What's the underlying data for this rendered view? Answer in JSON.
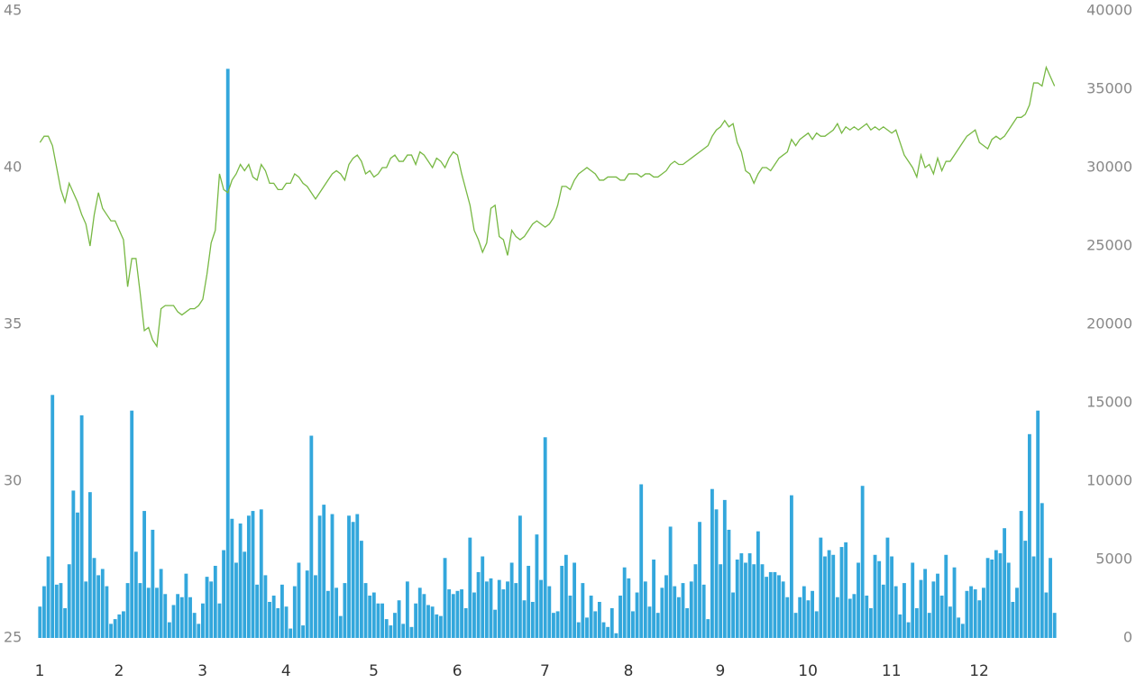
{
  "chart_data": {
    "type": "bar",
    "categories": [
      "1",
      null,
      null,
      null,
      null,
      null,
      null,
      null,
      null,
      null,
      null,
      null,
      null,
      null,
      null,
      null,
      null,
      null,
      null,
      "2",
      null,
      null,
      null,
      null,
      null,
      null,
      null,
      null,
      null,
      null,
      null,
      null,
      null,
      null,
      null,
      null,
      null,
      null,
      null,
      "3",
      null,
      null,
      null,
      null,
      null,
      null,
      null,
      null,
      null,
      null,
      null,
      null,
      null,
      null,
      null,
      null,
      null,
      null,
      null,
      "4",
      null,
      null,
      null,
      null,
      null,
      null,
      null,
      null,
      null,
      null,
      null,
      null,
      null,
      null,
      null,
      null,
      null,
      null,
      null,
      null,
      "5",
      null,
      null,
      null,
      null,
      null,
      null,
      null,
      null,
      null,
      null,
      null,
      null,
      null,
      null,
      null,
      null,
      null,
      null,
      null,
      "6",
      null,
      null,
      null,
      null,
      null,
      null,
      null,
      null,
      null,
      null,
      null,
      null,
      null,
      null,
      null,
      null,
      null,
      null,
      null,
      null,
      "7",
      null,
      null,
      null,
      null,
      null,
      null,
      null,
      null,
      null,
      null,
      null,
      null,
      null,
      null,
      null,
      null,
      null,
      null,
      null,
      "8",
      null,
      null,
      null,
      null,
      null,
      null,
      null,
      null,
      null,
      null,
      null,
      null,
      null,
      null,
      null,
      null,
      null,
      null,
      null,
      null,
      null,
      "9",
      null,
      null,
      null,
      null,
      null,
      null,
      null,
      null,
      null,
      null,
      null,
      null,
      null,
      null,
      null,
      null,
      null,
      null,
      null,
      null,
      "10",
      null,
      null,
      null,
      null,
      null,
      null,
      null,
      null,
      null,
      null,
      null,
      null,
      null,
      null,
      null,
      null,
      null,
      null,
      null,
      "11",
      null,
      null,
      null,
      null,
      null,
      null,
      null,
      null,
      null,
      null,
      null,
      null,
      null,
      null,
      null,
      null,
      null,
      null,
      null,
      null,
      "12",
      null,
      null,
      null,
      null,
      null,
      null,
      null,
      null,
      null,
      null,
      null,
      null,
      null,
      null,
      null,
      null,
      null,
      null
    ],
    "series": [
      {
        "type": "bar",
        "axis": "y2",
        "color": "#33a7dc",
        "values": [
          2000,
          3300,
          5200,
          15500,
          3400,
          3500,
          1900,
          4700,
          9400,
          8000,
          14200,
          3600,
          9300,
          5100,
          4000,
          4400,
          3300,
          900,
          1200,
          1500,
          1700,
          3500,
          14500,
          5500,
          3500,
          8100,
          3200,
          6900,
          3200,
          4400,
          2800,
          1000,
          2100,
          2800,
          2600,
          4100,
          2600,
          1600,
          900,
          2200,
          3900,
          3600,
          4600,
          2200,
          5600,
          36300,
          7600,
          4800,
          7300,
          5500,
          7800,
          8100,
          3400,
          8200,
          4000,
          2300,
          2700,
          1900,
          3400,
          2000,
          600,
          3300,
          4800,
          800,
          4300,
          12900,
          4000,
          7800,
          8500,
          3000,
          7900,
          3200,
          1400,
          3500,
          7800,
          7400,
          7900,
          6200,
          3500,
          2700,
          2900,
          2200,
          2200,
          1200,
          800,
          1600,
          2400,
          900,
          3600,
          700,
          2200,
          3200,
          2800,
          2100,
          2000,
          1500,
          1400,
          5100,
          3100,
          2800,
          3000,
          3100,
          1900,
          6400,
          2900,
          4200,
          5200,
          3600,
          3800,
          1800,
          3700,
          3100,
          3600,
          4800,
          3500,
          7800,
          2400,
          4600,
          2300,
          6600,
          3700,
          12800,
          3300,
          1600,
          1700,
          4600,
          5300,
          2700,
          4800,
          1000,
          3500,
          1300,
          2700,
          1700,
          2300,
          1000,
          700,
          1900,
          300,
          2700,
          4500,
          3800,
          1700,
          2900,
          9800,
          3600,
          2000,
          5000,
          1600,
          3200,
          4000,
          7100,
          3300,
          2600,
          3500,
          1900,
          3600,
          4700,
          7400,
          3400,
          1200,
          9500,
          8200,
          4700,
          8800,
          6900,
          2900,
          5000,
          5400,
          4800,
          5400,
          4700,
          6800,
          4700,
          3900,
          4200,
          4200,
          4000,
          3600,
          2600,
          9100,
          1600,
          2600,
          3300,
          2400,
          3000,
          1700,
          6400,
          5200,
          5600,
          5300,
          2600,
          5800,
          6100,
          2500,
          2800,
          4800,
          9700,
          2700,
          1900,
          5300,
          4900,
          3400,
          6400,
          5200,
          3300,
          1500,
          3500,
          1000,
          4800,
          1900,
          3700,
          4400,
          1600,
          3600,
          4100,
          2700,
          5300,
          2000,
          4500,
          1300,
          900,
          3000,
          3300,
          3100,
          2400,
          3200,
          5100,
          5000,
          5600,
          5400,
          7000,
          4800,
          2300,
          3200,
          8100,
          6200,
          13000,
          5200,
          14500,
          8600,
          2900,
          5100,
          1600
        ]
      },
      {
        "type": "line",
        "color": "#77b843",
        "values": [
          40.8,
          41.0,
          41.0,
          40.7,
          40.0,
          39.3,
          38.9,
          39.5,
          39.2,
          38.9,
          38.5,
          38.2,
          37.5,
          38.5,
          39.2,
          38.7,
          38.5,
          38.3,
          38.3,
          38.0,
          37.7,
          36.2,
          37.1,
          37.1,
          36.0,
          34.8,
          34.9,
          34.5,
          34.3,
          35.5,
          35.6,
          35.6,
          35.6,
          35.4,
          35.3,
          35.4,
          35.5,
          35.5,
          35.6,
          35.8,
          36.6,
          37.6,
          38.0,
          39.8,
          39.3,
          39.2,
          39.6,
          39.8,
          40.1,
          39.9,
          40.1,
          39.7,
          39.6,
          40.1,
          39.9,
          39.5,
          39.5,
          39.3,
          39.3,
          39.5,
          39.5,
          39.8,
          39.7,
          39.5,
          39.4,
          39.2,
          39.0,
          39.2,
          39.4,
          39.6,
          39.8,
          39.9,
          39.8,
          39.6,
          40.1,
          40.3,
          40.4,
          40.2,
          39.8,
          39.9,
          39.7,
          39.8,
          40.0,
          40.0,
          40.3,
          40.4,
          40.2,
          40.2,
          40.4,
          40.4,
          40.1,
          40.5,
          40.4,
          40.2,
          40.0,
          40.3,
          40.2,
          40.0,
          40.3,
          40.5,
          40.4,
          39.8,
          39.3,
          38.8,
          38.0,
          37.7,
          37.3,
          37.6,
          38.7,
          38.8,
          37.8,
          37.7,
          37.2,
          38.0,
          37.8,
          37.7,
          37.8,
          38.0,
          38.2,
          38.3,
          38.2,
          38.1,
          38.2,
          38.4,
          38.8,
          39.4,
          39.4,
          39.3,
          39.6,
          39.8,
          39.9,
          40.0,
          39.9,
          39.8,
          39.6,
          39.6,
          39.7,
          39.7,
          39.7,
          39.6,
          39.6,
          39.8,
          39.8,
          39.8,
          39.7,
          39.8,
          39.8,
          39.7,
          39.7,
          39.8,
          39.9,
          40.1,
          40.2,
          40.1,
          40.1,
          40.2,
          40.3,
          40.4,
          40.5,
          40.6,
          40.7,
          41.0,
          41.2,
          41.3,
          41.5,
          41.3,
          41.4,
          40.8,
          40.5,
          39.9,
          39.8,
          39.5,
          39.8,
          40.0,
          40.0,
          39.9,
          40.1,
          40.3,
          40.4,
          40.5,
          40.9,
          40.7,
          40.9,
          41.0,
          41.1,
          40.9,
          41.1,
          41.0,
          41.0,
          41.1,
          41.2,
          41.4,
          41.1,
          41.3,
          41.2,
          41.3,
          41.2,
          41.3,
          41.4,
          41.2,
          41.3,
          41.2,
          41.3,
          41.2,
          41.1,
          41.2,
          40.8,
          40.4,
          40.2,
          40.0,
          39.7,
          40.4,
          40.0,
          40.1,
          39.8,
          40.3,
          39.9,
          40.2,
          40.2,
          40.4,
          40.6,
          40.8,
          41.0,
          41.1,
          41.2,
          40.8,
          40.7,
          40.6,
          40.9,
          41.0,
          40.9,
          41.0,
          41.2,
          41.4,
          41.6,
          41.6,
          41.7,
          42.0,
          42.7,
          42.7,
          42.6,
          43.2,
          42.9,
          42.6
        ]
      }
    ],
    "ylim": [
      25,
      45
    ],
    "yticks": [
      25,
      30,
      35,
      40,
      45
    ],
    "y2lim": [
      0,
      40000
    ],
    "y2ticks": [
      0,
      5000,
      10000,
      15000,
      20000,
      25000,
      30000,
      35000,
      40000
    ]
  }
}
